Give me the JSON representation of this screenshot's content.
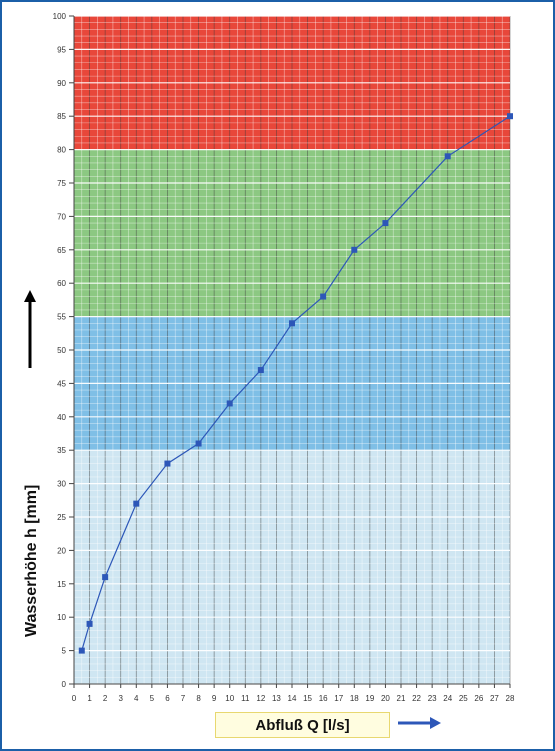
{
  "chart_data": {
    "type": "line",
    "title": "",
    "xlabel": "Abfluß Q [l/s]",
    "ylabel": "Wasserhöhe h [mm]",
    "xlim": [
      0,
      28
    ],
    "ylim": [
      0,
      100
    ],
    "x_ticks": [
      0,
      1,
      2,
      3,
      4,
      5,
      6,
      7,
      8,
      9,
      10,
      11,
      12,
      13,
      14,
      15,
      16,
      17,
      18,
      19,
      20,
      21,
      22,
      23,
      24,
      25,
      26,
      27,
      28
    ],
    "y_ticks": [
      0,
      5,
      10,
      15,
      20,
      25,
      30,
      35,
      40,
      45,
      50,
      55,
      60,
      65,
      70,
      75,
      80,
      85,
      90,
      95,
      100
    ],
    "bands": [
      {
        "from": 0,
        "to": 35,
        "color": "#cfe6f2"
      },
      {
        "from": 35,
        "to": 55,
        "color": "#7fbfe6"
      },
      {
        "from": 55,
        "to": 80,
        "color": "#8cc882"
      },
      {
        "from": 80,
        "to": 100,
        "color": "#e8473a"
      }
    ],
    "series": [
      {
        "color": "#2d57b8",
        "x": [
          0.5,
          1,
          2,
          4,
          6,
          8,
          10,
          12,
          14,
          16,
          18,
          20,
          24,
          28
        ],
        "y": [
          5,
          9,
          16,
          27,
          33,
          36,
          42,
          47,
          54,
          58,
          65,
          69,
          79,
          85
        ]
      }
    ],
    "grid": true
  }
}
